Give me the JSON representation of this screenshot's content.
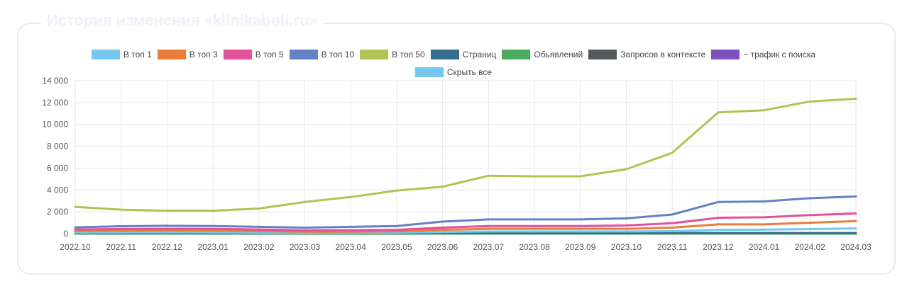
{
  "header": {
    "title": "История изменения «klinikaboli.ru»"
  },
  "legend": {
    "items": [
      {
        "label": "В топ 1",
        "color": "#74c7f0"
      },
      {
        "label": "В топ 3",
        "color": "#ec7c3a"
      },
      {
        "label": "В топ 5",
        "color": "#e5509a"
      },
      {
        "label": "В топ 10",
        "color": "#6381c5"
      },
      {
        "label": "В топ 50",
        "color": "#afc452"
      },
      {
        "label": "Страниц",
        "color": "#356e8e"
      },
      {
        "label": "Обьявлений",
        "color": "#4caa5e"
      },
      {
        "label": "Запросов в контексте",
        "color": "#555a5e"
      },
      {
        "label": "~ трафик с поиска",
        "color": "#7d52be"
      }
    ],
    "hide_all": {
      "label": "Скрыть все",
      "color": "#74c7f0"
    }
  },
  "chart_data": {
    "type": "line",
    "x": [
      "2022.10",
      "2022.11",
      "2022.12",
      "2023.01",
      "2023.02",
      "2023.03",
      "2023.04",
      "2023.05",
      "2023.06",
      "2023.07",
      "2023.08",
      "2023.09",
      "2023.10",
      "2023.11",
      "2023.12",
      "2024.01",
      "2024.02",
      "2024.03"
    ],
    "ylim": [
      0,
      14000
    ],
    "yticks": [
      0,
      2000,
      4000,
      6000,
      8000,
      10000,
      12000,
      14000
    ],
    "ytick_labels": [
      "0",
      "2 000",
      "4 000",
      "6 000",
      "8 000",
      "10 000",
      "12 000",
      "14 000"
    ],
    "grid": true,
    "legend_position": "top",
    "series": [
      {
        "name": "В топ 50",
        "color": "#afc452",
        "values": [
          2450,
          2200,
          2100,
          2100,
          2300,
          2900,
          3350,
          3950,
          4300,
          5300,
          5250,
          5250,
          5900,
          7400,
          11100,
          11300,
          12100,
          12350
        ]
      },
      {
        "name": "В топ 10",
        "color": "#6381c5",
        "values": [
          580,
          680,
          720,
          700,
          620,
          550,
          620,
          700,
          1100,
          1300,
          1300,
          1300,
          1400,
          1750,
          2900,
          2950,
          3250,
          3400
        ]
      },
      {
        "name": "В топ 5",
        "color": "#e5509a",
        "values": [
          380,
          430,
          450,
          440,
          380,
          300,
          320,
          350,
          550,
          700,
          700,
          700,
          750,
          950,
          1450,
          1500,
          1700,
          1850
        ]
      },
      {
        "name": "В топ 3",
        "color": "#ec7c3a",
        "values": [
          250,
          280,
          300,
          280,
          230,
          180,
          190,
          220,
          350,
          450,
          450,
          450,
          450,
          550,
          850,
          850,
          1000,
          1150
        ]
      },
      {
        "name": "В топ 1",
        "color": "#74c7f0",
        "values": [
          100,
          110,
          120,
          110,
          100,
          80,
          90,
          100,
          150,
          200,
          200,
          200,
          200,
          230,
          350,
          360,
          420,
          480
        ]
      },
      {
        "name": "Страниц",
        "color": "#356e8e",
        "values": [
          60,
          60,
          60,
          60,
          60,
          60,
          60,
          60,
          60,
          60,
          60,
          60,
          60,
          60,
          60,
          60,
          60,
          60
        ]
      },
      {
        "name": "Обьявлений",
        "color": "#4caa5e",
        "values": [
          0,
          0,
          0,
          0,
          0,
          0,
          0,
          0,
          0,
          0,
          0,
          0,
          0,
          0,
          0,
          0,
          0,
          0
        ]
      }
    ]
  }
}
